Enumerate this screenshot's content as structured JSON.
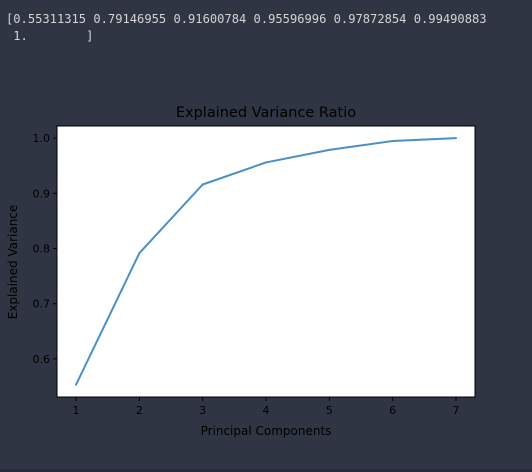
{
  "output": {
    "lines": [
      "[0.55311315 0.79146955 0.91600784 0.95596996 0.97872854 0.99490883",
      " 1.        ]"
    ]
  },
  "chart_data": {
    "type": "line",
    "title": "Explained Variance Ratio",
    "xlabel": "Principal Components",
    "ylabel": "Explained Variance",
    "x": [
      1,
      2,
      3,
      4,
      5,
      6,
      7
    ],
    "series": [
      {
        "values": [
          0.55311315,
          0.79146955,
          0.91600784,
          0.95596996,
          0.97872854,
          0.99490883,
          1.0
        ]
      }
    ],
    "xticks": [
      "1",
      "2",
      "3",
      "4",
      "5",
      "6",
      "7"
    ],
    "yticks": [
      "0.6",
      "0.7",
      "0.8",
      "0.9",
      "1.0"
    ],
    "xlim": [
      0.7,
      7.3
    ],
    "ylim": [
      0.531,
      1.022
    ],
    "grid": false,
    "line_color": "#4a90c6"
  }
}
